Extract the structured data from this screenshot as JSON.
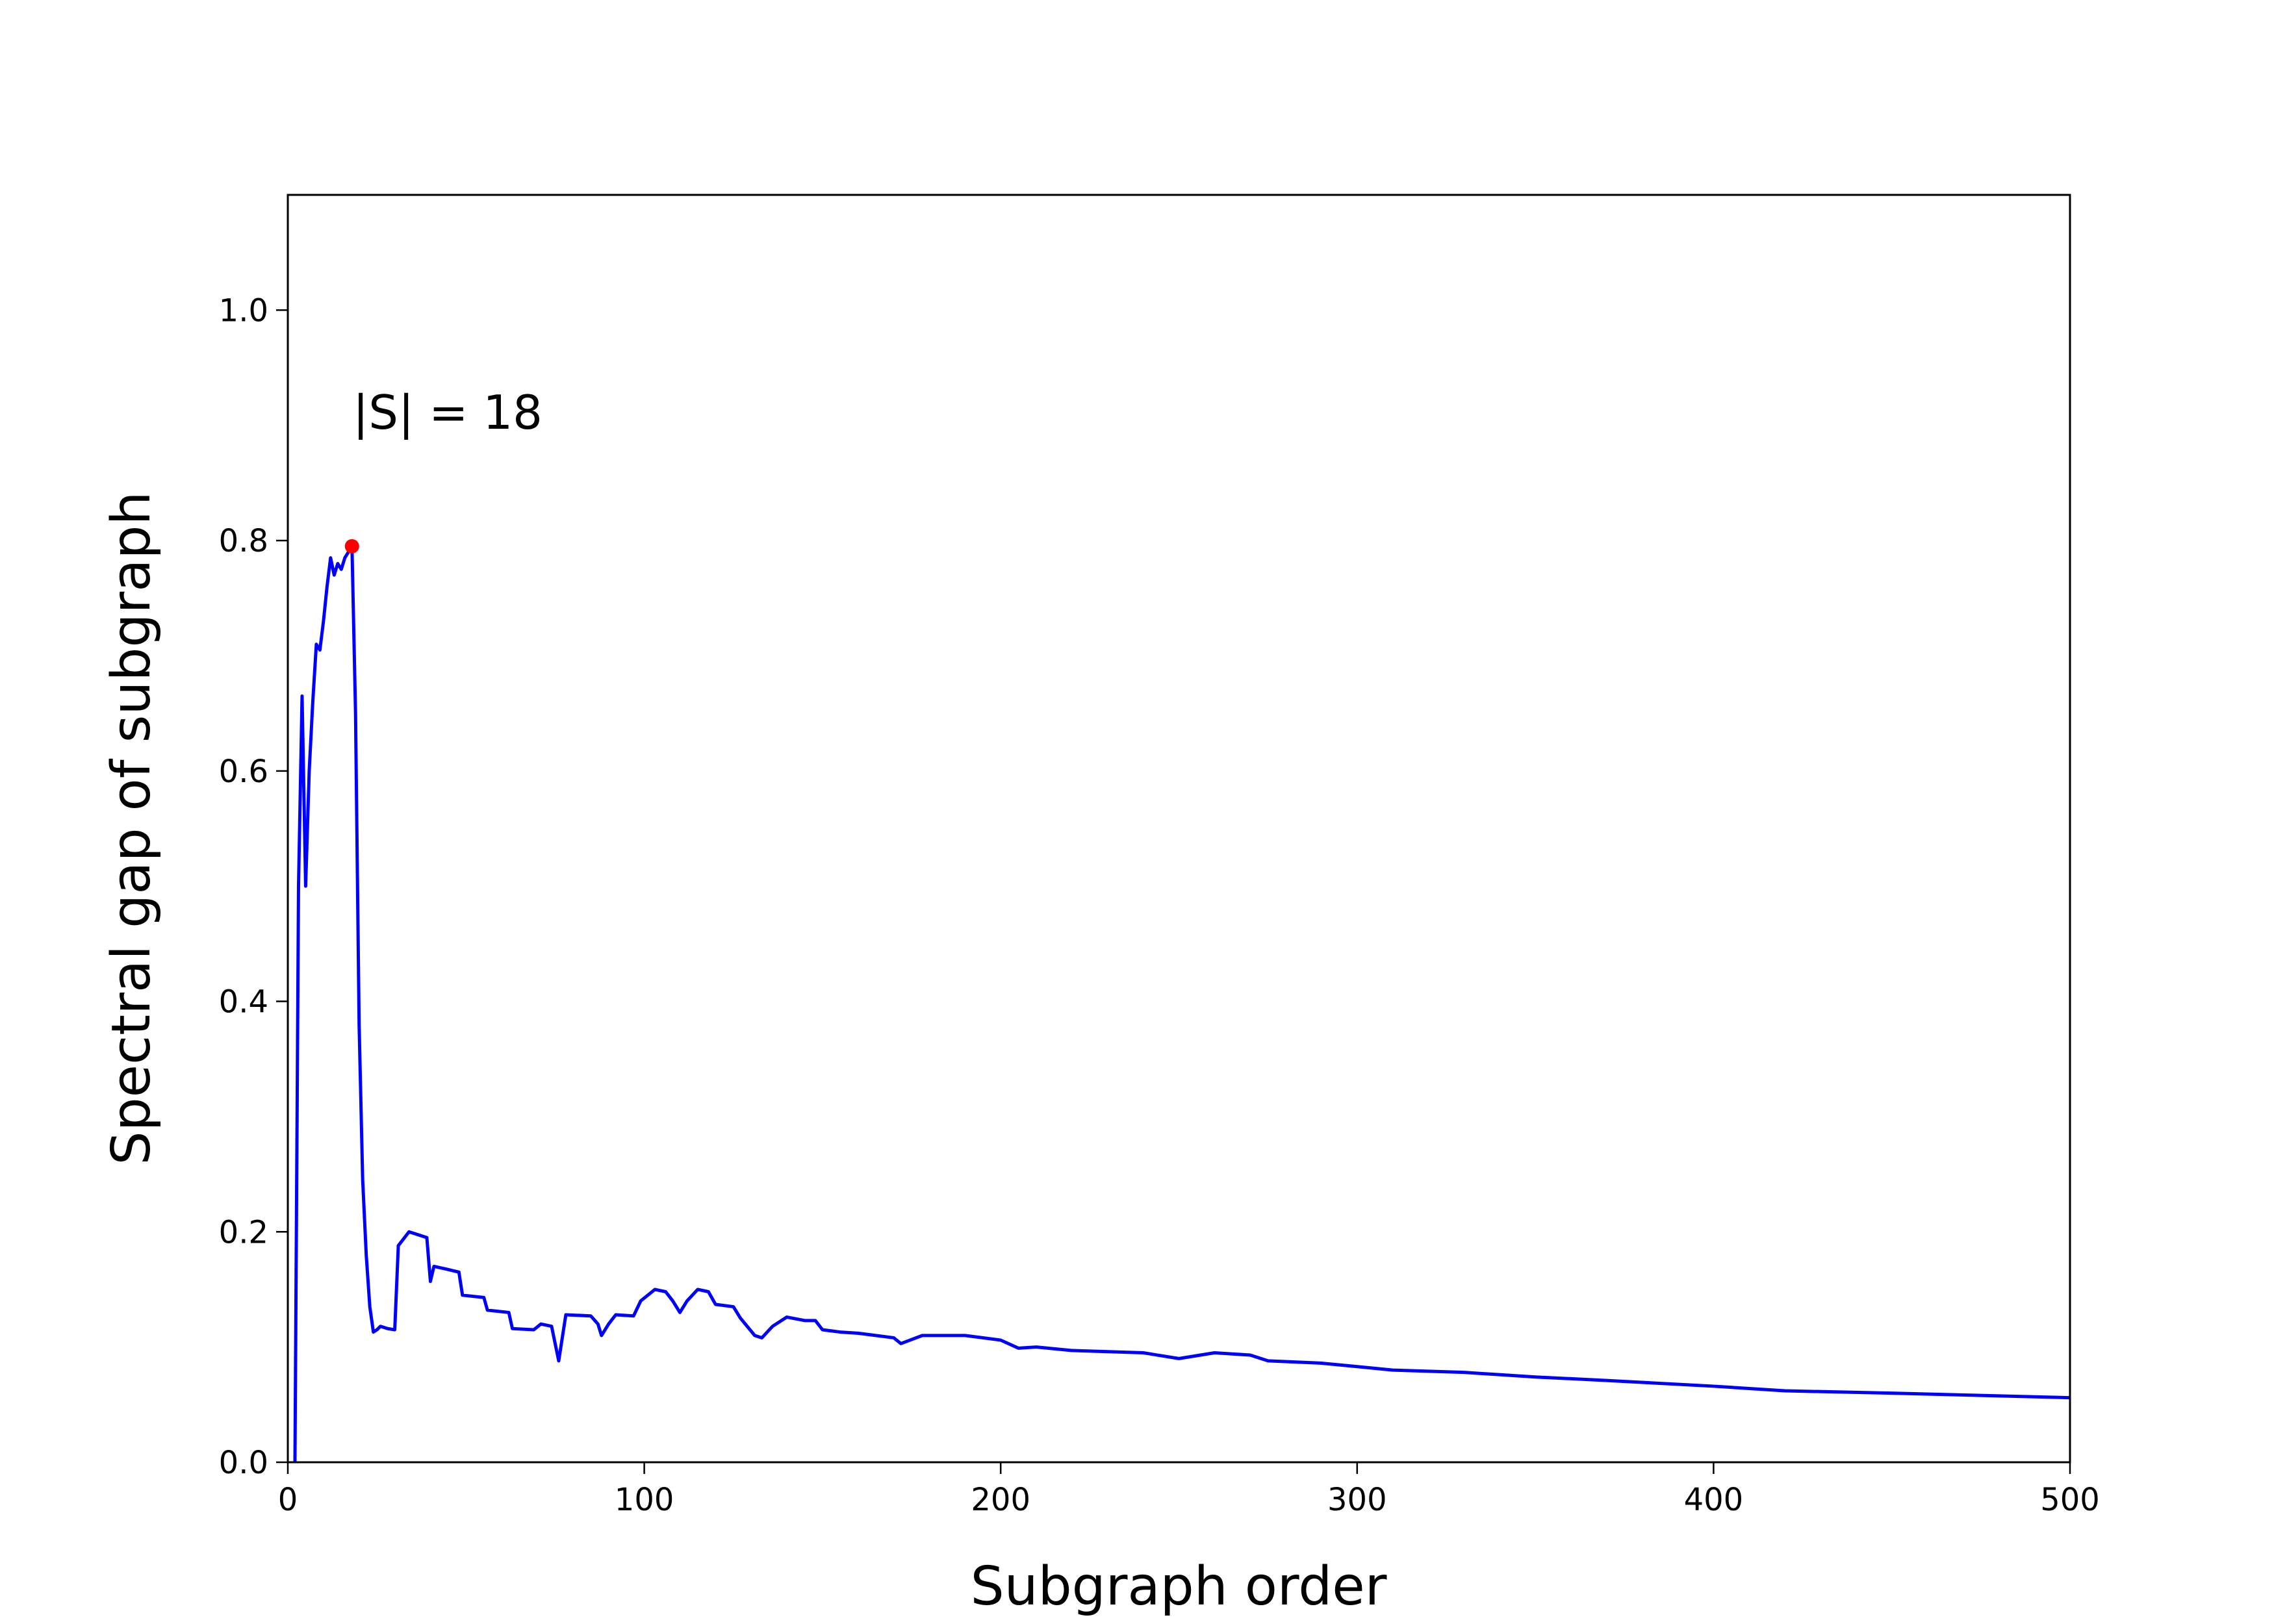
{
  "chart_data": {
    "type": "line",
    "xlabel": "Subgraph order",
    "ylabel": "Spectral gap of subgraph",
    "annotation": "|S| = 18",
    "x": [
      2,
      3,
      4,
      5,
      6,
      7,
      8,
      9,
      10,
      11,
      12,
      13,
      14,
      15,
      16,
      17,
      18,
      19,
      20,
      21,
      22,
      23,
      24,
      25,
      26,
      28,
      30,
      31,
      34,
      39,
      40,
      41,
      44,
      48,
      49,
      55,
      56,
      62,
      63,
      69,
      71,
      74,
      76,
      78,
      85,
      87,
      88,
      90,
      92,
      97,
      99,
      101,
      103,
      106,
      108,
      110,
      112,
      115,
      118,
      120,
      125,
      127,
      131,
      133,
      136,
      140,
      145,
      148,
      150,
      155,
      160,
      165,
      170,
      172,
      178,
      190,
      200,
      205,
      210,
      220,
      240,
      250,
      260,
      270,
      275,
      290,
      300,
      310,
      330,
      350,
      370,
      400,
      420,
      450,
      500
    ],
    "series": [
      {
        "color": "#0000ff",
        "values": [
          0,
          0.5,
          0.665,
          0.5,
          0.6,
          0.66,
          0.71,
          0.705,
          0.73,
          0.76,
          0.785,
          0.77,
          0.78,
          0.775,
          0.785,
          0.79,
          0.795,
          0.65,
          0.38,
          0.245,
          0.18,
          0.135,
          0.113,
          0.115,
          0.118,
          0.116,
          0.115,
          0.188,
          0.2,
          0.195,
          0.157,
          0.17,
          0.168,
          0.165,
          0.145,
          0.143,
          0.132,
          0.13,
          0.116,
          0.115,
          0.12,
          0.118,
          0.088,
          0.128,
          0.127,
          0.12,
          0.11,
          0.12,
          0.128,
          0.127,
          0.14,
          0.145,
          0.15,
          0.148,
          0.14,
          0.13,
          0.14,
          0.15,
          0.148,
          0.137,
          0.135,
          0.125,
          0.11,
          0.108,
          0.118,
          0.126,
          0.123,
          0.123,
          0.115,
          0.113,
          0.112,
          0.11,
          0.108,
          0.103,
          0.11,
          0.11,
          0.106,
          0.099,
          0.1,
          0.097,
          0.095,
          0.09,
          0.095,
          0.093,
          0.088,
          0.086,
          0.083,
          0.08,
          0.078,
          0.074,
          0.071,
          0.066,
          0.062,
          0.06,
          0.056
        ]
      }
    ],
    "highlight": {
      "x": 18,
      "y": 0.795,
      "color": "#ff0000"
    },
    "xlim": [
      0,
      500
    ],
    "ylim": [
      0,
      1.1
    ],
    "xticks": [
      0,
      100,
      200,
      300,
      400,
      500
    ],
    "yticks": [
      {
        "value": 0,
        "label": "0.0"
      },
      {
        "value": 0.2,
        "label": "0.2"
      },
      {
        "value": 0.4,
        "label": "0.4"
      },
      {
        "value": 0.6,
        "label": "0.6"
      },
      {
        "value": 0.8,
        "label": "0.8"
      },
      {
        "value": 1.0,
        "label": "1.0"
      }
    ]
  }
}
